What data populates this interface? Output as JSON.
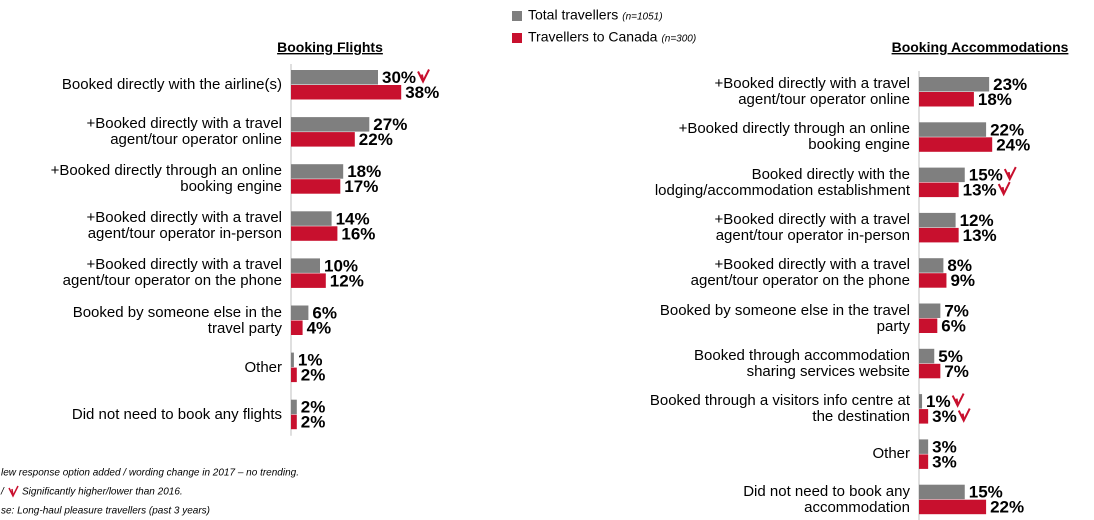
{
  "chart_data": [
    {
      "type": "hbar",
      "title": "Booking Flights",
      "xlim": [
        0,
        40
      ],
      "categories": [
        "Booked directly with the airline(s)",
        "+Booked directly with a travel\nagent/tour operator online",
        "+Booked directly through an online\nbooking engine",
        "+Booked directly with a travel\nagent/tour operator in-person",
        "+Booked directly with a travel\nagent/tour operator on the phone",
        "Booked by someone else in the\ntravel party",
        "Other",
        "Did not need to book any flights"
      ],
      "series": [
        {
          "name": "Total travellers",
          "sample": "(n=1051)",
          "color": "#7f7f7f",
          "values": [
            30,
            27,
            18,
            14,
            10,
            6,
            1,
            2
          ],
          "value_labels": [
            "30%",
            "27%",
            "18%",
            "14%",
            "10%",
            "6%",
            "1%",
            "2%"
          ],
          "significant": [
            true,
            false,
            false,
            false,
            false,
            false,
            false,
            false
          ]
        },
        {
          "name": "Travellers to Canada",
          "sample": "(n=300)",
          "color": "#c8102e",
          "values": [
            38,
            22,
            17,
            16,
            12,
            4,
            2,
            2
          ],
          "value_labels": [
            "38%",
            "22%",
            "17%",
            "16%",
            "12%",
            "4%",
            "2%",
            "2%"
          ],
          "significant": [
            false,
            false,
            false,
            false,
            false,
            false,
            false,
            false
          ]
        }
      ]
    },
    {
      "type": "hbar",
      "title": "Booking Accommodations",
      "xlim": [
        0,
        40
      ],
      "categories": [
        "+Booked directly with a travel\nagent/tour operator online",
        "+Booked directly through an online\nbooking engine",
        "Booked directly with the\nlodging/accommodation establishment",
        "+Booked directly with a travel\nagent/tour operator in-person",
        "+Booked directly with a travel\nagent/tour operator on the phone",
        "Booked by someone else in the travel\nparty",
        "Booked through accommodation\nsharing services website",
        "Booked through a visitors info centre at\nthe destination",
        "Other",
        "Did not need to book any\naccommodation"
      ],
      "series": [
        {
          "name": "Total travellers",
          "sample": "(n=1051)",
          "color": "#7f7f7f",
          "values": [
            23,
            22,
            15,
            12,
            8,
            7,
            5,
            1,
            3,
            15
          ],
          "value_labels": [
            "23%",
            "22%",
            "15%",
            "12%",
            "8%",
            "7%",
            "5%",
            "1%",
            "3%",
            "15%"
          ],
          "significant": [
            false,
            false,
            true,
            false,
            false,
            false,
            false,
            true,
            false,
            false
          ]
        },
        {
          "name": "Travellers to Canada",
          "sample": "(n=300)",
          "color": "#c8102e",
          "values": [
            18,
            24,
            13,
            13,
            9,
            6,
            7,
            3,
            3,
            22
          ],
          "value_labels": [
            "18%",
            "24%",
            "13%",
            "13%",
            "9%",
            "6%",
            "7%",
            "3%",
            "3%",
            "22%"
          ],
          "significant": [
            false,
            false,
            true,
            false,
            false,
            false,
            false,
            true,
            false,
            false
          ]
        }
      ]
    }
  ],
  "footnotes": [
    "lew response option added / wording change in 2017 – no trending.",
    "/",
    "Significantly higher/lower than 2016.",
    "se: Long-haul pleasure travellers (past 3 years)"
  ]
}
